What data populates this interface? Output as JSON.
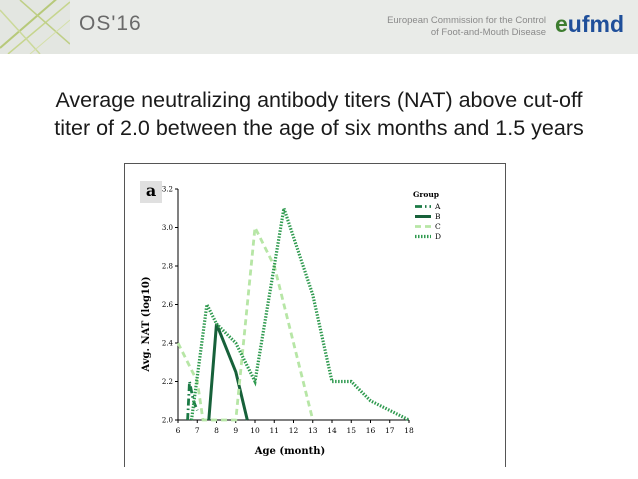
{
  "header": {
    "brand": "OS'16",
    "commission_line1": "European Commission for the Control",
    "commission_line2": "of Foot-and-Mouth Disease",
    "logo_e": "e",
    "logo_rest": "ufmd",
    "logo_colors": {
      "green": "#3d7d2f",
      "blue": "#1f4f9a"
    }
  },
  "slide": {
    "title_line1": "Average neutralizing antibody titers (NAT) above cut-off",
    "title_line2": "titer of 2.0 between the age of six months and 1.5 years"
  },
  "chart_data": {
    "type": "line",
    "panel_label": "a",
    "xlabel": "Age (month)",
    "ylabel": "Avg. NAT (log10)",
    "xlim": [
      6,
      18
    ],
    "ylim": [
      2.0,
      3.2
    ],
    "xticks": [
      "6",
      "7",
      "8",
      "9",
      "10",
      "11",
      "12",
      "13",
      "14",
      "15",
      "16",
      "17",
      "18"
    ],
    "yticks": [
      "2.0",
      "2.2",
      "2.4",
      "2.6",
      "2.8",
      "3.0",
      "3.2"
    ],
    "legend_title": "Group",
    "legend_position": "top-right",
    "series": [
      {
        "name": "A",
        "color": "#1b7a45",
        "dash": "dash-dot",
        "x": [
          6.5,
          6.6,
          6.8,
          7.0
        ],
        "y": [
          2.0,
          2.2,
          2.1,
          2.05
        ]
      },
      {
        "name": "B",
        "color": "#17613a",
        "dash": "solid",
        "x": [
          7.6,
          8.0,
          9.0,
          9.6
        ],
        "y": [
          2.0,
          2.5,
          2.25,
          2.0
        ]
      },
      {
        "name": "C",
        "color": "#b7e6a6",
        "dash": "dashed",
        "x": [
          6.0,
          7.0,
          7.3,
          9.0,
          10.0,
          11.0,
          13.0
        ],
        "y": [
          2.4,
          2.2,
          2.0,
          2.0,
          3.0,
          2.8,
          2.0
        ]
      },
      {
        "name": "D",
        "color": "#2f9a4f",
        "dash": "dotted",
        "x": [
          6.7,
          7.5,
          8.0,
          9.0,
          10.0,
          11.5,
          13.0,
          14.0,
          15.0,
          16.0,
          18.0
        ],
        "y": [
          2.0,
          2.6,
          2.5,
          2.4,
          2.2,
          3.1,
          2.65,
          2.2,
          2.2,
          2.1,
          2.0
        ]
      }
    ]
  }
}
